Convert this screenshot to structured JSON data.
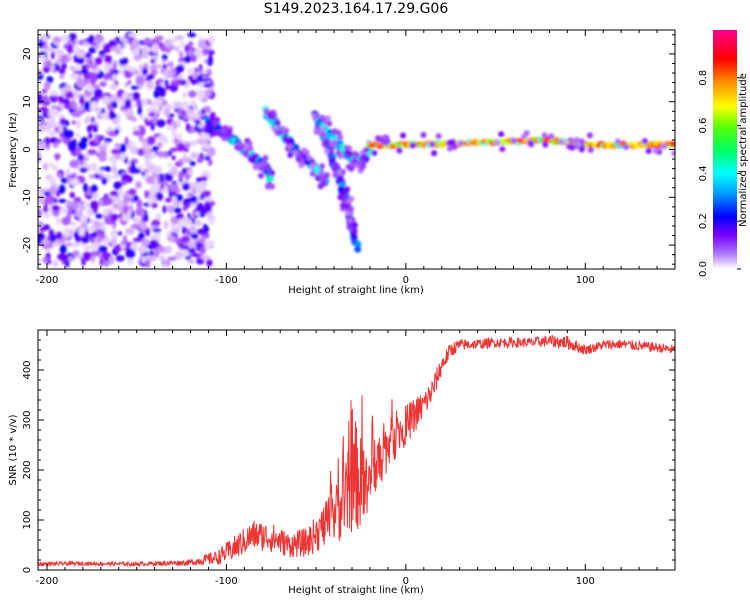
{
  "title": "S149.2023.164.17.29.G06",
  "chart_data": [
    {
      "type": "heatmap",
      "title": "S149.2023.164.17.29.G06",
      "xlabel": "Height of straight line (km)",
      "ylabel": "Frequency (Hz)",
      "xlim": [
        -205,
        150
      ],
      "ylim": [
        -25,
        25
      ],
      "xticks": [
        -200,
        -100,
        0,
        100
      ],
      "yticks": [
        -20,
        -10,
        0,
        10,
        20
      ],
      "colorbar": {
        "label": "Normalized spectral amplitude",
        "range": [
          0,
          1
        ],
        "ticks": [
          "0.0",
          "0.2",
          "0.4",
          "0.6",
          "0.8"
        ],
        "colormap": "gist_rainbow_r",
        "colors": [
          "#ffffff",
          "#7a00ff",
          "#0000ff",
          "#00ffff",
          "#00ff00",
          "#ffff00",
          "#ff8000",
          "#ff0000",
          "#ff0080"
        ]
      },
      "regions": [
        {
          "name": "noise",
          "x_range": [
            -205,
            -108
          ],
          "freq_range": [
            -24,
            24
          ],
          "amplitude": 0.1
        },
        {
          "name": "arc-1",
          "points": [
            [
              -110,
              6
            ],
            [
              -100,
              3
            ],
            [
              -90,
              0
            ],
            [
              -80,
              -3
            ],
            [
              -75,
              -6
            ]
          ],
          "amplitude": 0.3
        },
        {
          "name": "arc-2",
          "points": [
            [
              -78,
              8
            ],
            [
              -70,
              4
            ],
            [
              -60,
              -1
            ],
            [
              -50,
              -4
            ],
            [
              -45,
              -7
            ]
          ],
          "amplitude": 0.3
        },
        {
          "name": "arc-3",
          "points": [
            [
              -50,
              7
            ],
            [
              -45,
              2
            ],
            [
              -38,
              -5
            ],
            [
              -32,
              -12
            ],
            [
              -27,
              -21
            ]
          ],
          "amplitude": 0.25
        },
        {
          "name": "arc-4",
          "points": [
            [
              -48,
              6
            ],
            [
              -40,
              2
            ],
            [
              -30,
              -2
            ],
            [
              -25,
              -3
            ],
            [
              -20,
              0
            ]
          ],
          "amplitude": 0.35
        },
        {
          "name": "carrier",
          "points": [
            [
              -20,
              1
            ],
            [
              0,
              1
            ],
            [
              50,
              1.5
            ],
            [
              80,
              2
            ],
            [
              100,
              1
            ],
            [
              150,
              1
            ]
          ],
          "amplitude": 0.7
        }
      ]
    },
    {
      "type": "line",
      "xlabel": "Height of straight line (km)",
      "ylabel": "SNR (10 * v/v)",
      "xlim": [
        -205,
        150
      ],
      "ylim": [
        0,
        480
      ],
      "xticks": [
        -200,
        -100,
        0,
        100
      ],
      "yticks": [
        0,
        100,
        200,
        300,
        400
      ],
      "color": "#ee3333",
      "series": [
        {
          "name": "SNR",
          "x": [
            -205,
            -180,
            -150,
            -120,
            -105,
            -95,
            -85,
            -75,
            -65,
            -55,
            -45,
            -35,
            -28,
            -22,
            -15,
            -10,
            -5,
            0,
            5,
            10,
            15,
            20,
            25,
            30,
            40,
            50,
            60,
            70,
            80,
            90,
            100,
            110,
            120,
            130,
            140,
            150
          ],
          "y": [
            12,
            13,
            12,
            15,
            25,
            45,
            70,
            65,
            50,
            55,
            90,
            130,
            190,
            150,
            220,
            250,
            270,
            290,
            310,
            330,
            360,
            410,
            440,
            450,
            452,
            455,
            455,
            455,
            458,
            455,
            440,
            450,
            452,
            448,
            445,
            440
          ],
          "jitter": [
            4,
            4,
            4,
            6,
            15,
            25,
            30,
            30,
            25,
            30,
            45,
            70,
            110,
            80,
            60,
            50,
            45,
            40,
            35,
            30,
            25,
            20,
            15,
            12,
            10,
            10,
            10,
            10,
            12,
            14,
            10,
            10,
            10,
            10,
            10,
            10
          ]
        }
      ]
    }
  ]
}
